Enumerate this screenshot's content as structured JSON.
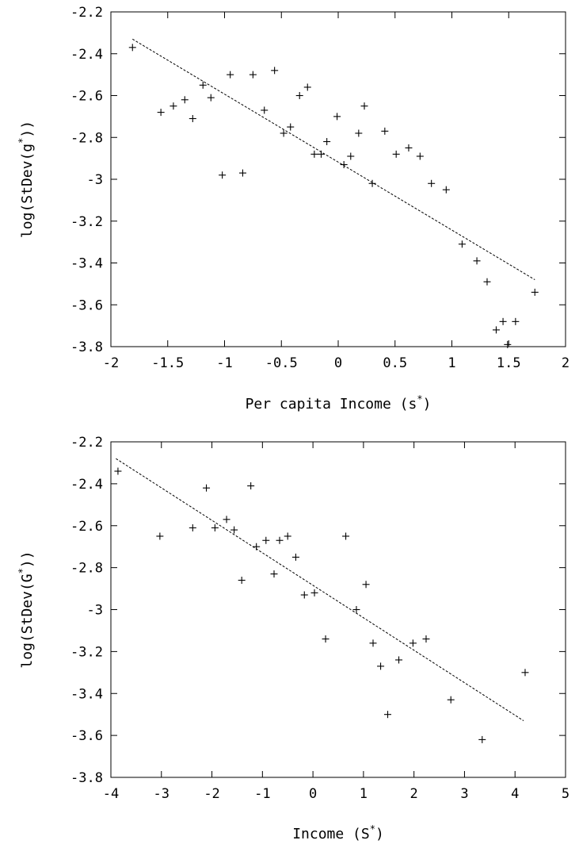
{
  "chart_data": [
    {
      "type": "scatter",
      "xlabel": {
        "pre": "Per capita Income (s",
        "sup": "*",
        "post": ")"
      },
      "ylabel": {
        "pre": "log(StDev(g",
        "sup": "*",
        "post": "))"
      },
      "xlim": [
        -2,
        2
      ],
      "ylim": [
        -3.8,
        -2.2
      ],
      "xticks": [
        "-2",
        "-1.5",
        "-1",
        "-0.5",
        "0",
        "0.5",
        "1",
        "1.5",
        "2"
      ],
      "yticks": [
        "-2.2",
        "-2.4",
        "-2.6",
        "-2.8",
        "-3",
        "-3.2",
        "-3.4",
        "-3.6",
        "-3.8"
      ],
      "points": [
        [
          -1.81,
          -2.37
        ],
        [
          -1.56,
          -2.68
        ],
        [
          -1.45,
          -2.65
        ],
        [
          -1.35,
          -2.62
        ],
        [
          -1.28,
          -2.71
        ],
        [
          -1.19,
          -2.55
        ],
        [
          -1.12,
          -2.61
        ],
        [
          -1.02,
          -2.98
        ],
        [
          -0.95,
          -2.5
        ],
        [
          -0.84,
          -2.97
        ],
        [
          -0.75,
          -2.5
        ],
        [
          -0.65,
          -2.67
        ],
        [
          -0.56,
          -2.48
        ],
        [
          -0.48,
          -2.78
        ],
        [
          -0.42,
          -2.75
        ],
        [
          -0.34,
          -2.6
        ],
        [
          -0.27,
          -2.56
        ],
        [
          -0.21,
          -2.88
        ],
        [
          -0.15,
          -2.88
        ],
        [
          -0.1,
          -2.82
        ],
        [
          -0.01,
          -2.7
        ],
        [
          0.05,
          -2.93
        ],
        [
          0.11,
          -2.89
        ],
        [
          0.18,
          -2.78
        ],
        [
          0.23,
          -2.65
        ],
        [
          0.3,
          -3.02
        ],
        [
          0.41,
          -2.77
        ],
        [
          0.51,
          -2.88
        ],
        [
          0.62,
          -2.85
        ],
        [
          0.72,
          -2.89
        ],
        [
          0.82,
          -3.02
        ],
        [
          0.95,
          -3.05
        ],
        [
          1.09,
          -3.31
        ],
        [
          1.22,
          -3.39
        ],
        [
          1.31,
          -3.49
        ],
        [
          1.39,
          -3.72
        ],
        [
          1.45,
          -3.68
        ],
        [
          1.49,
          -3.79
        ],
        [
          1.56,
          -3.68
        ],
        [
          1.73,
          -3.54
        ]
      ],
      "fit_line": [
        [
          -1.81,
          -2.33
        ],
        [
          1.73,
          -3.48
        ]
      ]
    },
    {
      "type": "scatter",
      "xlabel": {
        "pre": "Income (S",
        "sup": "*",
        "post": ")"
      },
      "ylabel": {
        "pre": "log(StDev(G",
        "sup": "*",
        "post": "))"
      },
      "xlim": [
        -4,
        5
      ],
      "ylim": [
        -3.8,
        -2.2
      ],
      "xticks": [
        "-4",
        "-3",
        "-2",
        "-1",
        "0",
        "1",
        "2",
        "3",
        "4",
        "5"
      ],
      "yticks": [
        "-2.2",
        "-2.4",
        "-2.6",
        "-2.8",
        "-3",
        "-3.2",
        "-3.4",
        "-3.6",
        "-3.8"
      ],
      "points": [
        [
          -3.86,
          -2.34
        ],
        [
          -3.03,
          -2.65
        ],
        [
          -2.38,
          -2.61
        ],
        [
          -2.11,
          -2.42
        ],
        [
          -1.94,
          -2.61
        ],
        [
          -1.71,
          -2.57
        ],
        [
          -1.56,
          -2.62
        ],
        [
          -1.41,
          -2.86
        ],
        [
          -1.23,
          -2.41
        ],
        [
          -1.12,
          -2.7
        ],
        [
          -0.93,
          -2.67
        ],
        [
          -0.77,
          -2.83
        ],
        [
          -0.66,
          -2.67
        ],
        [
          -0.5,
          -2.65
        ],
        [
          -0.34,
          -2.75
        ],
        [
          -0.17,
          -2.93
        ],
        [
          0.03,
          -2.92
        ],
        [
          0.25,
          -3.14
        ],
        [
          0.65,
          -2.65
        ],
        [
          0.86,
          -3.0
        ],
        [
          1.05,
          -2.88
        ],
        [
          1.19,
          -3.16
        ],
        [
          1.34,
          -3.27
        ],
        [
          1.48,
          -3.5
        ],
        [
          1.7,
          -3.24
        ],
        [
          1.98,
          -3.16
        ],
        [
          2.24,
          -3.14
        ],
        [
          2.73,
          -3.43
        ],
        [
          3.35,
          -3.62
        ],
        [
          4.2,
          -3.3
        ]
      ],
      "fit_line": [
        [
          -3.9,
          -2.28
        ],
        [
          4.17,
          -3.53
        ]
      ]
    }
  ]
}
